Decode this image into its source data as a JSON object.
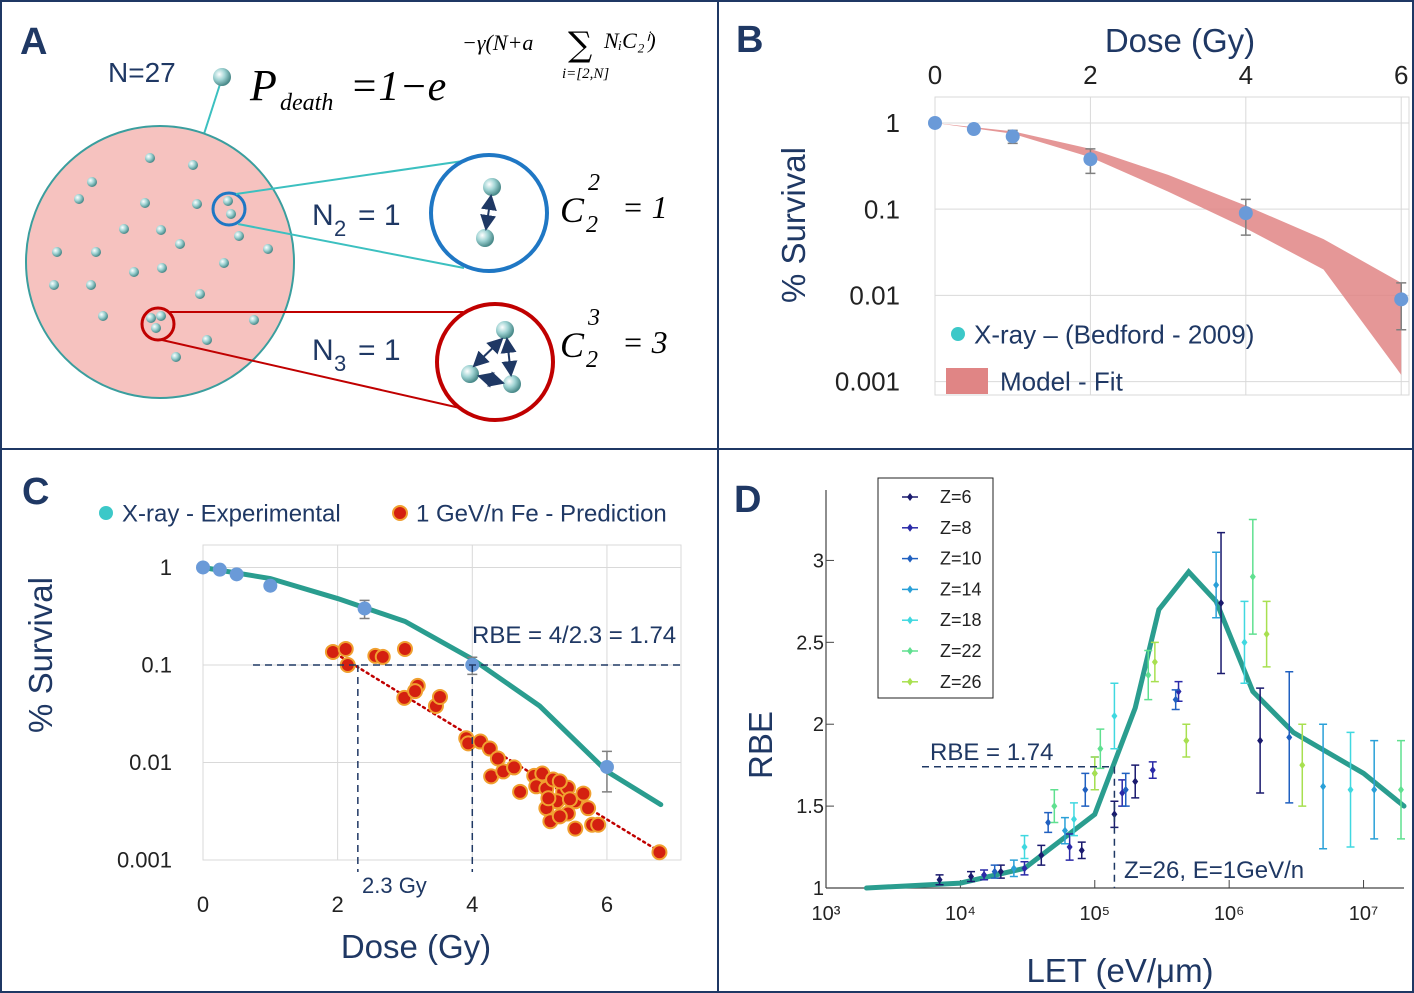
{
  "diagram": {
    "label": "A",
    "count_label": "N=27",
    "formula": {
      "lhs": "P",
      "lhs_sub": "death",
      "rhs": "=1−e",
      "exponent": "−γ(N+a",
      "sum": "∑",
      "summand": "NᵢC₂ⁱ)",
      "range": "i=[2,N]"
    },
    "pairs": [
      {
        "n": {
          "symbol": "N",
          "sub": "2",
          "rhs": "= 1"
        },
        "c": {
          "symbol": "C",
          "sub": "2",
          "sup": "2",
          "rhs": "= 1"
        }
      },
      {
        "n": {
          "symbol": "N",
          "sub": "3",
          "rhs": "= 1"
        },
        "c": {
          "symbol": "C",
          "sub": "2",
          "sup": "3",
          "rhs": "= 3"
        }
      }
    ]
  },
  "chart_data": [
    {
      "type": "scatter",
      "label": "B",
      "xlabel": "Dose (Gy)",
      "ylabel": "% Survival",
      "xlim": [
        0,
        6.1
      ],
      "xticks": [
        0,
        2,
        4,
        6
      ],
      "ylim": [
        0.0007,
        2
      ],
      "yticks": [
        1,
        0.1,
        0.01,
        0.001
      ],
      "log_y": true,
      "grid": true,
      "x_axis_position": "top",
      "error_color": "#7f7f7f",
      "series": [
        {
          "name": "X-ray – (Bedford  - 2009)",
          "color": "#6a9ad8",
          "legend_color": "#3cc8c8",
          "x": [
            0,
            0.5,
            1,
            2,
            4,
            6
          ],
          "values": [
            1,
            0.85,
            0.7,
            0.38,
            0.09,
            0.009
          ],
          "errors": [
            0,
            0.05,
            0.12,
            0.12,
            0.04,
            0.005
          ]
        },
        {
          "name": "Model - Fit",
          "color": "#e08585",
          "x": [
            0,
            1,
            2,
            3,
            4,
            5,
            6
          ],
          "upper": [
            1,
            0.8,
            0.5,
            0.25,
            0.11,
            0.045,
            0.014
          ],
          "lower": [
            1,
            0.75,
            0.4,
            0.16,
            0.06,
            0.02,
            0.0012
          ]
        }
      ]
    },
    {
      "type": "scatter",
      "label": "C",
      "xlabel": "Dose (Gy)",
      "ylabel": "% Survival",
      "xlim": [
        0,
        7.1
      ],
      "xticks": [
        0,
        2,
        4,
        6
      ],
      "ylim": [
        0.001,
        1.7
      ],
      "yticks": [
        1,
        0.1,
        0.01,
        0.001
      ],
      "log_y": true,
      "grid": true,
      "x_axis_position": "bottom",
      "error_color": "#7f7f7f",
      "series": [
        {
          "name": "X-ray - Experimental",
          "color": "#6a9ad8",
          "legend_color": "#3cc8c8",
          "x": [
            0,
            0.25,
            0.5,
            1,
            2.4,
            4,
            6
          ],
          "values": [
            1,
            0.95,
            0.85,
            0.65,
            0.38,
            0.1,
            0.009
          ],
          "errors": [
            0,
            0,
            0,
            0,
            0.08,
            0.02,
            0.004
          ]
        },
        {
          "name": "1 GeV/n Fe - Prediction",
          "color": "#d42010",
          "edge_color": "#f0a030",
          "x": [
            1.93,
            2.12,
            2.15,
            2.56,
            2.67,
            3.0,
            2.99,
            3.19,
            3.15,
            3.46,
            3.52,
            3.91,
            3.94,
            4.12,
            4.26,
            4.38,
            4.28,
            4.46,
            4.62,
            4.92,
            5.04,
            4.95,
            5.1,
            5.2,
            5.35,
            5.42,
            5.26,
            5.1,
            5.16,
            5.42,
            5.53,
            5.72,
            5.78,
            5.53,
            5.65,
            5.3,
            5.87,
            6.78,
            4.71,
            5.13,
            5.3,
            5.45
          ],
          "values": [
            0.136,
            0.146,
            0.1,
            0.124,
            0.121,
            0.146,
            0.046,
            0.061,
            0.054,
            0.038,
            0.047,
            0.0177,
            0.0157,
            0.0164,
            0.0139,
            0.011,
            0.0072,
            0.0081,
            0.0089,
            0.0073,
            0.0077,
            0.0057,
            0.0054,
            0.0067,
            0.005,
            0.0055,
            0.004,
            0.0034,
            0.0025,
            0.003,
            0.004,
            0.0034,
            0.0023,
            0.0021,
            0.0048,
            0.0028,
            0.0023,
            0.0012,
            0.005,
            0.0043,
            0.0064,
            0.0042
          ]
        }
      ],
      "curves": [
        {
          "color": "#2a9d8f",
          "x": [
            0,
            1,
            2,
            3,
            4,
            5,
            6,
            6.8
          ],
          "values": [
            1,
            0.77,
            0.48,
            0.28,
            0.115,
            0.038,
            0.0081,
            0.0037
          ]
        },
        {
          "color": "#c00000",
          "dash": "dotted",
          "x": [
            1.9,
            6.8
          ],
          "values": [
            0.14,
            0.0012
          ]
        }
      ],
      "reference_lines": [
        {
          "axis": "y",
          "value": 0.1
        },
        {
          "axis": "x",
          "value": 2.3
        },
        {
          "axis": "x",
          "value": 4
        }
      ],
      "annotations": [
        "RBE = 4/2.3 = 1.74",
        "2.3 Gy"
      ]
    },
    {
      "type": "scatter",
      "label": "D",
      "xlabel": "LET (eV/μm)",
      "ylabel": "RBE",
      "log_x": true,
      "xlim": [
        1000,
        20000000
      ],
      "xticks": [
        {
          "value": 1000,
          "label": "10³"
        },
        {
          "value": 10000,
          "label": "10⁴"
        },
        {
          "value": 100000,
          "label": "10⁵"
        },
        {
          "value": 1000000,
          "label": "10⁶"
        },
        {
          "value": 10000000,
          "label": "10⁷"
        }
      ],
      "ylim": [
        1,
        3.43
      ],
      "yticks": [
        1,
        1.5,
        2,
        2.5,
        3
      ],
      "grid": false,
      "x_axis_position": "bottom",
      "legend": "upper left",
      "series": [
        {
          "name": "Z=6",
          "color": "#1a1a6e",
          "x": [
            7000,
            12000,
            20000,
            40000,
            80000,
            140000,
            200000,
            870000,
            1700000
          ],
          "values": [
            1.05,
            1.07,
            1.1,
            1.2,
            1.23,
            1.45,
            1.65,
            2.74,
            1.9
          ],
          "errors": [
            0.03,
            0.03,
            0.04,
            0.06,
            0.05,
            0.08,
            0.1,
            0.43,
            0.32
          ]
        },
        {
          "name": "Z=8",
          "color": "#2a2aa8",
          "x": [
            15000,
            30000,
            65000,
            160000,
            270000,
            420000
          ],
          "values": [
            1.08,
            1.12,
            1.25,
            1.58,
            1.72,
            2.2
          ],
          "errors": [
            0.03,
            0.04,
            0.08,
            0.08,
            0.05,
            0.06
          ]
        },
        {
          "name": "Z=10",
          "color": "#2060c0",
          "x": [
            18000,
            45000,
            85000,
            170000,
            400000,
            2800000
          ],
          "values": [
            1.1,
            1.4,
            1.6,
            1.6,
            2.15,
            1.92
          ],
          "errors": [
            0.04,
            0.06,
            0.1,
            0.1,
            0.06,
            0.4
          ]
        },
        {
          "name": "Z=14",
          "color": "#2aa0d8",
          "x": [
            25000,
            60000,
            100000,
            800000,
            5000000,
            12000000
          ],
          "values": [
            1.12,
            1.35,
            1.7,
            2.85,
            1.62,
            1.6
          ],
          "errors": [
            0.05,
            0.08,
            0.1,
            0.2,
            0.38,
            0.3
          ]
        },
        {
          "name": "Z=18",
          "color": "#40d8e0",
          "x": [
            30000,
            70000,
            140000,
            1300000,
            8000000
          ],
          "values": [
            1.25,
            1.42,
            2.05,
            2.5,
            1.6
          ],
          "errors": [
            0.07,
            0.1,
            0.2,
            0.25,
            0.35
          ]
        },
        {
          "name": "Z=22",
          "color": "#60e090",
          "x": [
            50000,
            110000,
            250000,
            1500000,
            19000000
          ],
          "values": [
            1.5,
            1.85,
            2.3,
            2.9,
            1.6
          ],
          "errors": [
            0.1,
            0.12,
            0.15,
            0.35,
            0.3
          ]
        },
        {
          "name": "Z=26",
          "color": "#a8e050",
          "x": [
            100000,
            280000,
            480000,
            1900000,
            3500000
          ],
          "values": [
            1.7,
            2.38,
            1.9,
            2.55,
            1.75
          ],
          "errors": [
            0.1,
            0.12,
            0.1,
            0.2,
            0.25
          ]
        }
      ],
      "curves": [
        {
          "color": "#2a9d8f",
          "x": [
            2000,
            10000,
            30000,
            100000,
            200000,
            300000,
            500000,
            800000,
            1500000,
            3000000,
            10000000,
            20000000
          ],
          "values": [
            1.0,
            1.03,
            1.12,
            1.45,
            2.1,
            2.7,
            2.93,
            2.75,
            2.2,
            1.95,
            1.7,
            1.5
          ]
        }
      ],
      "reference_lines": [
        {
          "axis": "y",
          "value": 1.74
        },
        {
          "axis": "x",
          "value": 140000
        }
      ],
      "annotations": [
        "RBE = 1.74",
        "Z=26, E=1GeV/n"
      ]
    }
  ]
}
